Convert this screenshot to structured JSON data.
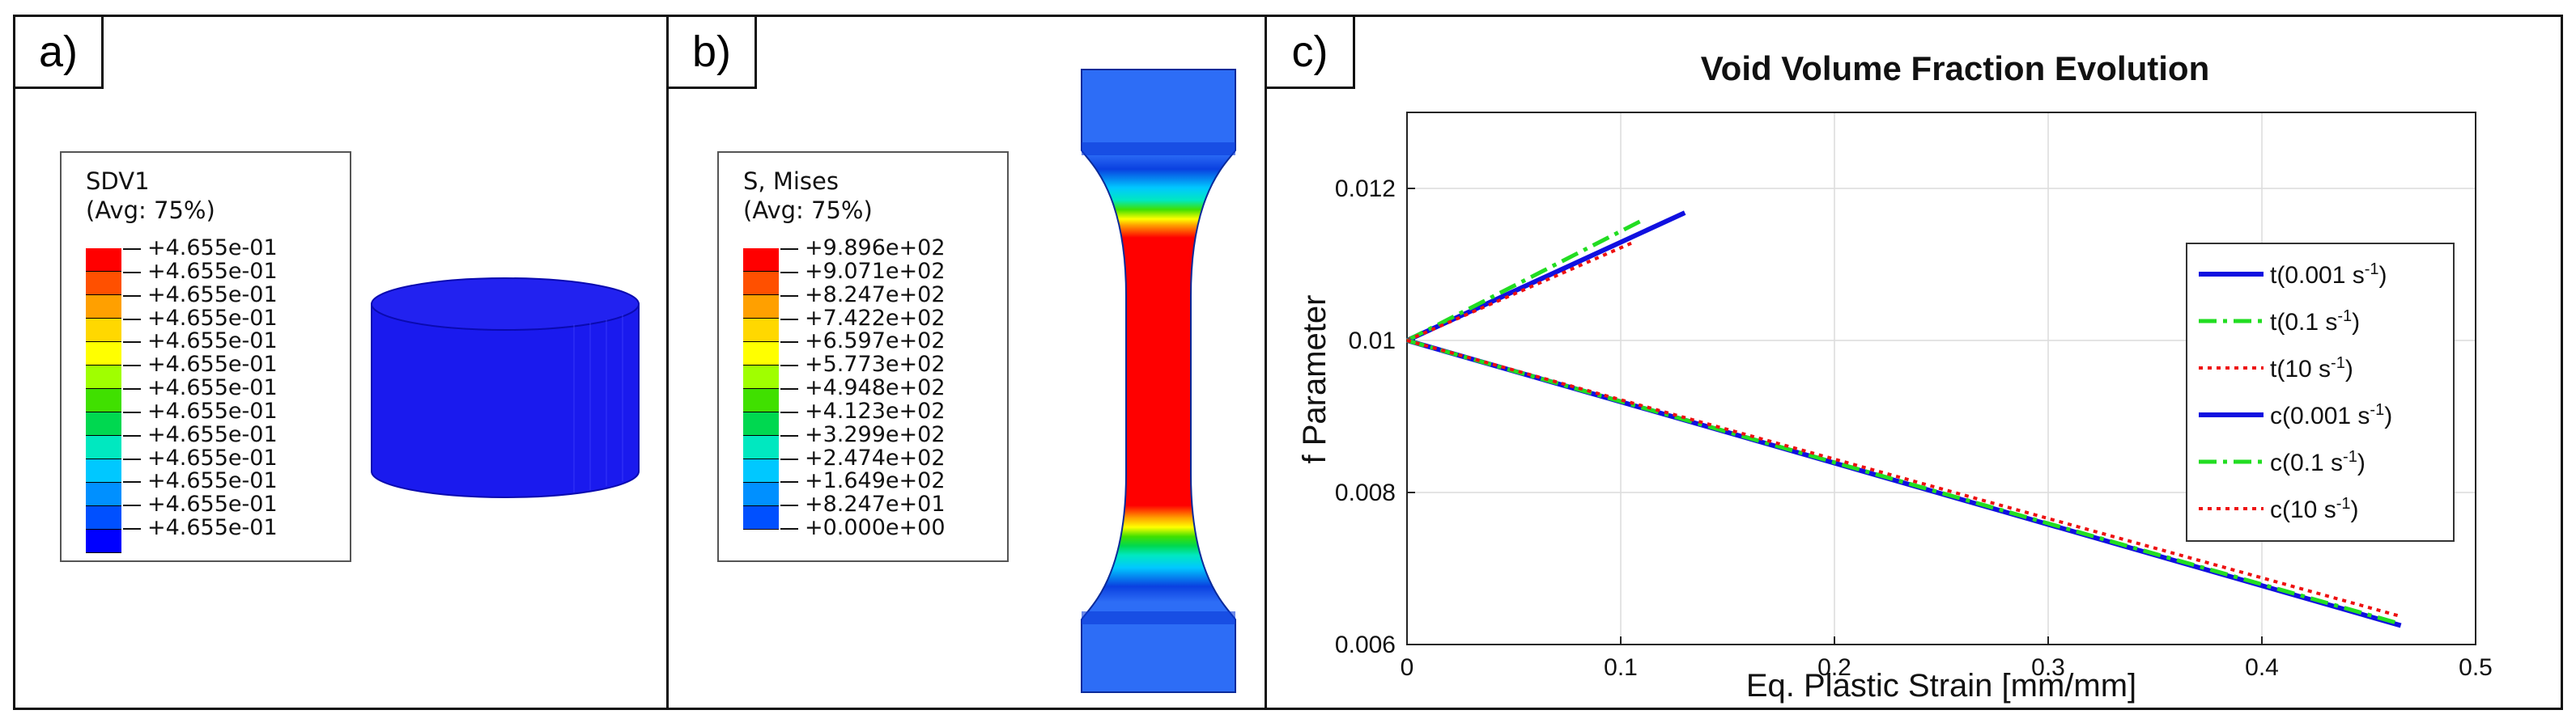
{
  "panels": {
    "a": {
      "label": "a)",
      "legend_title": "SDV1",
      "legend_subtitle": "(Avg: 75%)",
      "colors": [
        "#ff0000",
        "#ff5000",
        "#ffa000",
        "#ffd800",
        "#ffff00",
        "#a0ff00",
        "#40e000",
        "#00d850",
        "#00e8c0",
        "#00c8ff",
        "#0090ff",
        "#0050ff",
        "#0000ff"
      ],
      "ticks": [
        "+4.655e-01",
        "+4.655e-01",
        "+4.655e-01",
        "+4.655e-01",
        "+4.655e-01",
        "+4.655e-01",
        "+4.655e-01",
        "+4.655e-01",
        "+4.655e-01",
        "+4.655e-01",
        "+4.655e-01",
        "+4.655e-01",
        "+4.655e-01"
      ]
    },
    "b": {
      "label": "b)",
      "legend_title": "S, Mises",
      "legend_subtitle": "(Avg: 75%)",
      "colors": [
        "#ff0000",
        "#ff5000",
        "#ffa000",
        "#ffd800",
        "#ffff00",
        "#a0ff00",
        "#40e000",
        "#00d850",
        "#00e8c0",
        "#00c8ff",
        "#0090ff",
        "#0050ff"
      ],
      "ticks": [
        "+9.896e+02",
        "+9.071e+02",
        "+8.247e+02",
        "+7.422e+02",
        "+6.597e+02",
        "+5.773e+02",
        "+4.948e+02",
        "+4.123e+02",
        "+3.299e+02",
        "+2.474e+02",
        "+1.649e+02",
        "+8.247e+01",
        "+0.000e+00"
      ]
    },
    "c": {
      "label": "c)"
    }
  },
  "chart_data": {
    "type": "line",
    "title": "Void Volume Fraction Evolution",
    "xlabel": "Eq. Plastic Strain [mm/mm]",
    "ylabel": "f  Parameter",
    "xlim": [
      0,
      0.5
    ],
    "ylim": [
      0.006,
      0.013
    ],
    "xticks": [
      0,
      0.1,
      0.2,
      0.3,
      0.4,
      0.5
    ],
    "xtick_labels": [
      "0",
      "0.1",
      "0.2",
      "0.3",
      "0.4",
      "0.5"
    ],
    "yticks": [
      0.006,
      0.008,
      0.01,
      0.012
    ],
    "ytick_labels": [
      "0.006",
      "0.008",
      "0.01",
      "0.012"
    ],
    "grid": true,
    "legend_position": "right",
    "series": [
      {
        "name": "t(0.001 s",
        "sup": "-1",
        "name_end": ")",
        "color": "#1010e0",
        "dash": "solid",
        "width": 6,
        "x": [
          0,
          0.13
        ],
        "y": [
          0.01,
          0.01168
        ]
      },
      {
        "name": "t(0.1 s",
        "sup": "-1",
        "name_end": ")",
        "color": "#22dd22",
        "dash": "dashdot",
        "width": 5,
        "x": [
          0,
          0.11
        ],
        "y": [
          0.01,
          0.01158
        ]
      },
      {
        "name": "t(10 s",
        "sup": "-1",
        "name_end": ")",
        "color": "#ee1111",
        "dash": "dotted",
        "width": 4,
        "x": [
          0,
          0.105
        ],
        "y": [
          0.01,
          0.01128
        ]
      },
      {
        "name": "c(0.001 s",
        "sup": "-1",
        "name_end": ")",
        "color": "#1010e0",
        "dash": "solid",
        "width": 6,
        "x": [
          0,
          0.465
        ],
        "y": [
          0.01,
          0.00625
        ]
      },
      {
        "name": "c(0.1 s",
        "sup": "-1",
        "name_end": ")",
        "color": "#22dd22",
        "dash": "dashdot",
        "width": 5,
        "x": [
          0,
          0.465
        ],
        "y": [
          0.01,
          0.00627
        ]
      },
      {
        "name": "c(10 s",
        "sup": "-1",
        "name_end": ")",
        "color": "#ee1111",
        "dash": "dotted",
        "width": 4,
        "x": [
          0,
          0.465
        ],
        "y": [
          0.01,
          0.00637
        ]
      }
    ]
  }
}
